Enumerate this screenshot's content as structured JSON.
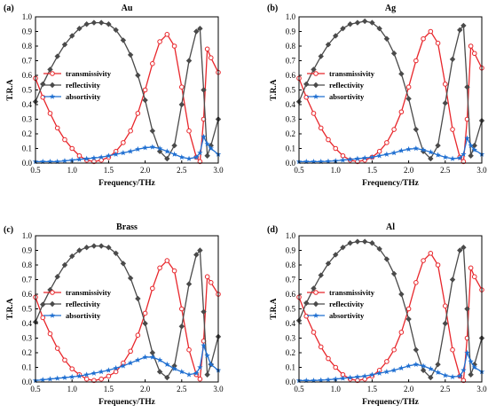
{
  "chart_data": [
    {
      "type": "line",
      "panel_label": "(a)",
      "title": "Au",
      "xlabel": "Frequency/THz",
      "ylabel": "T.R.A",
      "xlim": [
        0.5,
        3.0
      ],
      "ylim": [
        0.0,
        1.0
      ],
      "xticks": [
        "0.5",
        "1.0",
        "1.5",
        "2.0",
        "2.5",
        "3.0"
      ],
      "yticks": [
        "0.0",
        "0.1",
        "0.2",
        "0.3",
        "0.4",
        "0.5",
        "0.6",
        "0.7",
        "0.8",
        "0.9",
        "1.0"
      ],
      "legend_position": "left",
      "series": [
        {
          "name": "transmissivity",
          "color": "#e8262b",
          "marker": "circle",
          "x": [
            0.5,
            0.6,
            0.7,
            0.8,
            0.9,
            1.0,
            1.1,
            1.2,
            1.3,
            1.4,
            1.5,
            1.6,
            1.7,
            1.8,
            1.9,
            2.0,
            2.1,
            2.2,
            2.3,
            2.4,
            2.5,
            2.6,
            2.7,
            2.75,
            2.8,
            2.85,
            2.9,
            3.0
          ],
          "y": [
            0.58,
            0.45,
            0.34,
            0.24,
            0.16,
            0.1,
            0.05,
            0.02,
            0.01,
            0.02,
            0.04,
            0.08,
            0.14,
            0.22,
            0.34,
            0.5,
            0.68,
            0.83,
            0.88,
            0.8,
            0.52,
            0.22,
            0.04,
            0.01,
            0.3,
            0.78,
            0.72,
            0.62
          ]
        },
        {
          "name": "reflectivity",
          "color": "#4a4a4a",
          "marker": "diamond",
          "x": [
            0.5,
            0.6,
            0.7,
            0.8,
            0.9,
            1.0,
            1.1,
            1.2,
            1.3,
            1.4,
            1.5,
            1.6,
            1.7,
            1.8,
            1.9,
            2.0,
            2.1,
            2.2,
            2.3,
            2.4,
            2.5,
            2.6,
            2.7,
            2.75,
            2.8,
            2.85,
            2.9,
            3.0
          ],
          "y": [
            0.42,
            0.54,
            0.64,
            0.73,
            0.81,
            0.87,
            0.92,
            0.95,
            0.96,
            0.96,
            0.95,
            0.91,
            0.84,
            0.74,
            0.6,
            0.43,
            0.22,
            0.08,
            0.03,
            0.12,
            0.4,
            0.7,
            0.9,
            0.92,
            0.5,
            0.05,
            0.12,
            0.3
          ]
        },
        {
          "name": "absortivity",
          "color": "#1f6fd1",
          "marker": "star",
          "x": [
            0.5,
            0.6,
            0.7,
            0.8,
            0.9,
            1.0,
            1.1,
            1.2,
            1.3,
            1.4,
            1.5,
            1.6,
            1.7,
            1.8,
            1.9,
            2.0,
            2.1,
            2.2,
            2.3,
            2.4,
            2.5,
            2.6,
            2.7,
            2.75,
            2.8,
            2.85,
            2.9,
            3.0
          ],
          "y": [
            0.01,
            0.01,
            0.01,
            0.01,
            0.015,
            0.02,
            0.025,
            0.03,
            0.035,
            0.04,
            0.05,
            0.06,
            0.07,
            0.08,
            0.095,
            0.105,
            0.11,
            0.1,
            0.08,
            0.06,
            0.04,
            0.03,
            0.04,
            0.07,
            0.18,
            0.13,
            0.1,
            0.06
          ]
        }
      ]
    },
    {
      "type": "line",
      "panel_label": "(b)",
      "title": "Ag",
      "xlabel": "Frequency/THz",
      "ylabel": "T.R.A",
      "xlim": [
        0.5,
        3.0
      ],
      "ylim": [
        0.0,
        1.0
      ],
      "xticks": [
        "0.5",
        "1.0",
        "1.5",
        "2.0",
        "2.5",
        "3.0"
      ],
      "yticks": [
        "0.0",
        "0.1",
        "0.2",
        "0.3",
        "0.4",
        "0.5",
        "0.6",
        "0.7",
        "0.8",
        "0.9",
        "1.0"
      ],
      "legend_position": "left",
      "series": [
        {
          "name": "transmissivity",
          "color": "#e8262b",
          "marker": "circle",
          "x": [
            0.5,
            0.6,
            0.7,
            0.8,
            0.9,
            1.0,
            1.1,
            1.2,
            1.3,
            1.4,
            1.5,
            1.6,
            1.7,
            1.8,
            1.9,
            2.0,
            2.1,
            2.2,
            2.3,
            2.4,
            2.5,
            2.6,
            2.7,
            2.75,
            2.8,
            2.85,
            2.9,
            3.0
          ],
          "y": [
            0.58,
            0.45,
            0.34,
            0.24,
            0.16,
            0.1,
            0.05,
            0.02,
            0.01,
            0.02,
            0.04,
            0.08,
            0.14,
            0.23,
            0.35,
            0.52,
            0.7,
            0.85,
            0.9,
            0.82,
            0.54,
            0.23,
            0.04,
            0.01,
            0.3,
            0.8,
            0.75,
            0.65
          ]
        },
        {
          "name": "reflectivity",
          "color": "#4a4a4a",
          "marker": "diamond",
          "x": [
            0.5,
            0.6,
            0.7,
            0.8,
            0.9,
            1.0,
            1.1,
            1.2,
            1.3,
            1.4,
            1.5,
            1.6,
            1.7,
            1.8,
            1.9,
            2.0,
            2.1,
            2.2,
            2.3,
            2.4,
            2.5,
            2.6,
            2.7,
            2.75,
            2.8,
            2.85,
            2.9,
            3.0
          ],
          "y": [
            0.42,
            0.54,
            0.64,
            0.73,
            0.81,
            0.87,
            0.92,
            0.95,
            0.96,
            0.97,
            0.96,
            0.92,
            0.85,
            0.75,
            0.61,
            0.44,
            0.23,
            0.08,
            0.03,
            0.12,
            0.41,
            0.71,
            0.91,
            0.94,
            0.52,
            0.05,
            0.12,
            0.29
          ]
        },
        {
          "name": "absortivity",
          "color": "#1f6fd1",
          "marker": "star",
          "x": [
            0.5,
            0.6,
            0.7,
            0.8,
            0.9,
            1.0,
            1.1,
            1.2,
            1.3,
            1.4,
            1.5,
            1.6,
            1.7,
            1.8,
            1.9,
            2.0,
            2.1,
            2.2,
            2.3,
            2.4,
            2.5,
            2.6,
            2.7,
            2.75,
            2.8,
            2.85,
            2.9,
            3.0
          ],
          "y": [
            0.01,
            0.01,
            0.01,
            0.01,
            0.012,
            0.015,
            0.02,
            0.025,
            0.03,
            0.035,
            0.04,
            0.05,
            0.06,
            0.07,
            0.085,
            0.095,
            0.1,
            0.09,
            0.075,
            0.055,
            0.04,
            0.03,
            0.035,
            0.06,
            0.17,
            0.12,
            0.09,
            0.06
          ]
        }
      ]
    },
    {
      "type": "line",
      "panel_label": "(c)",
      "title": "Brass",
      "xlabel": "Frequency/THz",
      "ylabel": "T.R.A",
      "xlim": [
        0.5,
        3.0
      ],
      "ylim": [
        0.0,
        1.0
      ],
      "xticks": [
        "0.5",
        "1.0",
        "1.5",
        "2.0",
        "2.5",
        "3.0"
      ],
      "yticks": [
        "0.0",
        "0.1",
        "0.2",
        "0.3",
        "0.4",
        "0.5",
        "0.6",
        "0.7",
        "0.8",
        "0.9",
        "1.0"
      ],
      "legend_position": "left",
      "series": [
        {
          "name": "transmissivity",
          "color": "#e8262b",
          "marker": "circle",
          "x": [
            0.5,
            0.6,
            0.7,
            0.8,
            0.9,
            1.0,
            1.1,
            1.2,
            1.3,
            1.4,
            1.5,
            1.6,
            1.7,
            1.8,
            1.9,
            2.0,
            2.1,
            2.2,
            2.3,
            2.4,
            2.5,
            2.6,
            2.7,
            2.75,
            2.8,
            2.85,
            2.9,
            3.0
          ],
          "y": [
            0.58,
            0.44,
            0.33,
            0.23,
            0.15,
            0.09,
            0.05,
            0.02,
            0.01,
            0.02,
            0.04,
            0.07,
            0.13,
            0.21,
            0.32,
            0.47,
            0.64,
            0.78,
            0.83,
            0.76,
            0.5,
            0.22,
            0.05,
            0.02,
            0.28,
            0.72,
            0.68,
            0.6
          ]
        },
        {
          "name": "reflectivity",
          "color": "#4a4a4a",
          "marker": "diamond",
          "x": [
            0.5,
            0.6,
            0.7,
            0.8,
            0.9,
            1.0,
            1.1,
            1.2,
            1.3,
            1.4,
            1.5,
            1.6,
            1.7,
            1.8,
            1.9,
            2.0,
            2.1,
            2.2,
            2.3,
            2.4,
            2.5,
            2.6,
            2.7,
            2.75,
            2.8,
            2.85,
            2.9,
            3.0
          ],
          "y": [
            0.41,
            0.53,
            0.63,
            0.72,
            0.8,
            0.86,
            0.9,
            0.92,
            0.93,
            0.93,
            0.92,
            0.88,
            0.81,
            0.71,
            0.57,
            0.4,
            0.2,
            0.07,
            0.03,
            0.11,
            0.38,
            0.67,
            0.87,
            0.9,
            0.48,
            0.05,
            0.12,
            0.31
          ]
        },
        {
          "name": "absortivity",
          "color": "#1f6fd1",
          "marker": "star",
          "x": [
            0.5,
            0.6,
            0.7,
            0.8,
            0.9,
            1.0,
            1.1,
            1.2,
            1.3,
            1.4,
            1.5,
            1.6,
            1.7,
            1.8,
            1.9,
            2.0,
            2.1,
            2.2,
            2.3,
            2.4,
            2.5,
            2.6,
            2.7,
            2.75,
            2.8,
            2.85,
            2.9,
            3.0
          ],
          "y": [
            0.01,
            0.015,
            0.02,
            0.025,
            0.03,
            0.035,
            0.04,
            0.05,
            0.06,
            0.07,
            0.08,
            0.095,
            0.11,
            0.13,
            0.15,
            0.17,
            0.17,
            0.15,
            0.12,
            0.09,
            0.07,
            0.05,
            0.06,
            0.1,
            0.25,
            0.18,
            0.12,
            0.08
          ]
        }
      ]
    },
    {
      "type": "line",
      "panel_label": "(d)",
      "title": "Al",
      "xlabel": "Frequency/THz",
      "ylabel": "T.R.A",
      "xlim": [
        0.5,
        3.0
      ],
      "ylim": [
        0.0,
        1.0
      ],
      "xticks": [
        "0.5",
        "1.0",
        "1.5",
        "2.0",
        "2.5",
        "3.0"
      ],
      "yticks": [
        "0.0",
        "0.1",
        "0.2",
        "0.3",
        "0.4",
        "0.5",
        "0.6",
        "0.7",
        "0.8",
        "0.9",
        "1.0"
      ],
      "legend_position": "left",
      "series": [
        {
          "name": "transmissivity",
          "color": "#e8262b",
          "marker": "circle",
          "x": [
            0.5,
            0.6,
            0.7,
            0.8,
            0.9,
            1.0,
            1.1,
            1.2,
            1.3,
            1.4,
            1.5,
            1.6,
            1.7,
            1.8,
            1.9,
            2.0,
            2.1,
            2.2,
            2.3,
            2.4,
            2.5,
            2.6,
            2.7,
            2.75,
            2.8,
            2.85,
            2.9,
            3.0
          ],
          "y": [
            0.58,
            0.45,
            0.34,
            0.24,
            0.16,
            0.1,
            0.05,
            0.02,
            0.01,
            0.02,
            0.04,
            0.08,
            0.14,
            0.22,
            0.34,
            0.5,
            0.68,
            0.83,
            0.88,
            0.8,
            0.52,
            0.22,
            0.04,
            0.01,
            0.3,
            0.78,
            0.72,
            0.63
          ]
        },
        {
          "name": "reflectivity",
          "color": "#4a4a4a",
          "marker": "diamond",
          "x": [
            0.5,
            0.6,
            0.7,
            0.8,
            0.9,
            1.0,
            1.1,
            1.2,
            1.3,
            1.4,
            1.5,
            1.6,
            1.7,
            1.8,
            1.9,
            2.0,
            2.1,
            2.2,
            2.3,
            2.4,
            2.5,
            2.6,
            2.7,
            2.75,
            2.8,
            2.85,
            2.9,
            3.0
          ],
          "y": [
            0.42,
            0.54,
            0.64,
            0.73,
            0.81,
            0.87,
            0.92,
            0.95,
            0.96,
            0.96,
            0.95,
            0.91,
            0.84,
            0.74,
            0.6,
            0.43,
            0.22,
            0.08,
            0.03,
            0.12,
            0.4,
            0.7,
            0.9,
            0.92,
            0.5,
            0.05,
            0.12,
            0.3
          ]
        },
        {
          "name": "absortivity",
          "color": "#1f6fd1",
          "marker": "star",
          "x": [
            0.5,
            0.6,
            0.7,
            0.8,
            0.9,
            1.0,
            1.1,
            1.2,
            1.3,
            1.4,
            1.5,
            1.6,
            1.7,
            1.8,
            1.9,
            2.0,
            2.1,
            2.2,
            2.3,
            2.4,
            2.5,
            2.6,
            2.7,
            2.75,
            2.8,
            2.85,
            2.9,
            3.0
          ],
          "y": [
            0.01,
            0.01,
            0.01,
            0.012,
            0.015,
            0.02,
            0.025,
            0.03,
            0.035,
            0.04,
            0.05,
            0.06,
            0.07,
            0.08,
            0.095,
            0.11,
            0.12,
            0.11,
            0.09,
            0.065,
            0.045,
            0.035,
            0.04,
            0.08,
            0.2,
            0.14,
            0.1,
            0.07
          ]
        }
      ]
    }
  ]
}
